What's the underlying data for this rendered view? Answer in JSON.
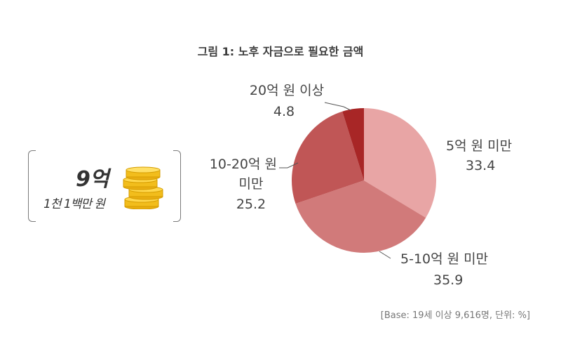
{
  "title": "그림 1: 노후 자금으로 필요한 금액",
  "summary": {
    "amount": "9억",
    "amount_detail": "1천 1백만 원",
    "icon": "coin-stack-icon"
  },
  "note": "[Base: 19세 이상 9,616명, 단위: %]",
  "chart_data": {
    "type": "pie",
    "title": "그림 1: 노후 자금으로 필요한 금액",
    "unit": "%",
    "labels": [
      "5억 원 미만",
      "5-10억 원 미만",
      "10-20억 원 미만",
      "20억 원 이상"
    ],
    "values": [
      33.4,
      35.9,
      25.2,
      4.8
    ],
    "value_labels": [
      "33.4",
      "35.9",
      "25.2",
      "4.8"
    ],
    "colors": [
      "#e8a5a5",
      "#d17a7a",
      "#c05656",
      "#a82626"
    ],
    "start_angle": "12 o'clock",
    "direction": "clockwise",
    "legend": "none (direct labels with leader lines)"
  }
}
